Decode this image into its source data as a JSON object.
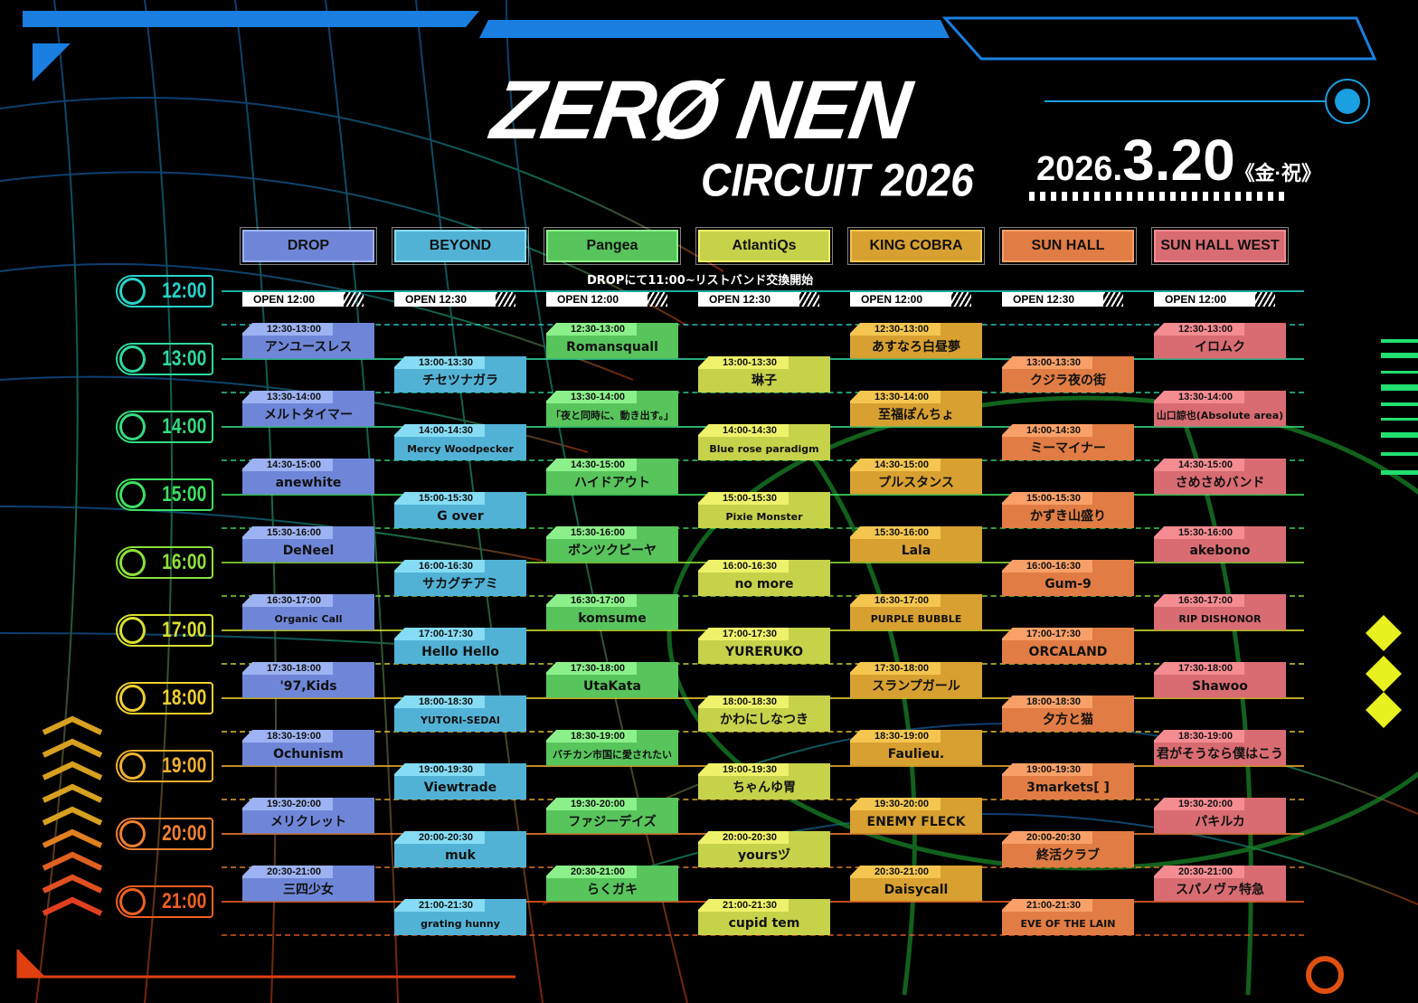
{
  "header": {
    "logo": "ZERØ NEN",
    "subtitle": "CIRCUIT 2026",
    "date_year": "2026.",
    "date_day": "3.20",
    "date_suffix": "《金·祝》"
  },
  "notice": "DROPにて11:00~リストバンド交換開始",
  "times": [
    "12:00",
    "13:00",
    "14:00",
    "15:00",
    "16:00",
    "17:00",
    "18:00",
    "19:00",
    "20:00",
    "21:00"
  ],
  "time_colors": [
    "#27d3c8",
    "#2fd8a0",
    "#35dc80",
    "#3ee060",
    "#8ee03a",
    "#d8e030",
    "#f0d030",
    "#f0b030",
    "#f08030",
    "#f06020"
  ],
  "stages": [
    {
      "name": "DROP",
      "color": "#6f86d8",
      "tab": "#9db2f2",
      "open": "OPEN 12:00",
      "sets": [
        {
          "time": "12:30-13:00",
          "artist": "アンユースレス"
        },
        {
          "time": "13:30-14:00",
          "artist": "メルトタイマー"
        },
        {
          "time": "14:30-15:00",
          "artist": "anewhite"
        },
        {
          "time": "15:30-16:00",
          "artist": "DeNeel"
        },
        {
          "time": "16:30-17:00",
          "artist": "Organic Call"
        },
        {
          "time": "17:30-18:00",
          "artist": "'97,Kids"
        },
        {
          "time": "18:30-19:00",
          "artist": "Ochunism"
        },
        {
          "time": "19:30-20:00",
          "artist": "メリクレット"
        },
        {
          "time": "20:30-21:00",
          "artist": "三四少女"
        }
      ]
    },
    {
      "name": "BEYOND",
      "color": "#52b2d6",
      "tab": "#86dcf4",
      "open": "OPEN 12:30",
      "sets": [
        {
          "time": "13:00-13:30",
          "artist": "チセツナガラ"
        },
        {
          "time": "14:00-14:30",
          "artist": "Mercy Woodpecker"
        },
        {
          "time": "15:00-15:30",
          "artist": "G over"
        },
        {
          "time": "16:00-16:30",
          "artist": "サカグチアミ"
        },
        {
          "time": "17:00-17:30",
          "artist": "Hello Hello"
        },
        {
          "time": "18:00-18:30",
          "artist": "YUTORI-SEDAI"
        },
        {
          "time": "19:00-19:30",
          "artist": "Viewtrade"
        },
        {
          "time": "20:00-20:30",
          "artist": "muk"
        },
        {
          "time": "21:00-21:30",
          "artist": "grating hunny"
        }
      ]
    },
    {
      "name": "Pangea",
      "color": "#58c45c",
      "tab": "#8cf08a",
      "open": "OPEN 12:00",
      "sets": [
        {
          "time": "12:30-13:00",
          "artist": "Romansquall"
        },
        {
          "time": "13:30-14:00",
          "artist": "「夜と同時に、動き出す。」"
        },
        {
          "time": "14:30-15:00",
          "artist": "ハイドアウト"
        },
        {
          "time": "15:30-16:00",
          "artist": "ボンツクピーヤ"
        },
        {
          "time": "16:30-17:00",
          "artist": "komsume"
        },
        {
          "time": "17:30-18:00",
          "artist": "UtaKata"
        },
        {
          "time": "18:30-19:00",
          "artist": "バチカン市国に愛されたい"
        },
        {
          "time": "19:30-20:00",
          "artist": "ファジーデイズ"
        },
        {
          "time": "20:30-21:00",
          "artist": "らくガキ"
        }
      ]
    },
    {
      "name": "AtlantiQs",
      "color": "#c6d24a",
      "tab": "#eef26a",
      "open": "OPEN 12:30",
      "sets": [
        {
          "time": "13:00-13:30",
          "artist": "琳子"
        },
        {
          "time": "14:00-14:30",
          "artist": "Blue rose paradigm"
        },
        {
          "time": "15:00-15:30",
          "artist": "Pixie Monster"
        },
        {
          "time": "16:00-16:30",
          "artist": "no more"
        },
        {
          "time": "17:00-17:30",
          "artist": "YURERUKO"
        },
        {
          "time": "18:00-18:30",
          "artist": "かわにしなつき"
        },
        {
          "time": "19:00-19:30",
          "artist": "ちゃんゆ胃"
        },
        {
          "time": "20:00-20:30",
          "artist": "yoursヅ"
        },
        {
          "time": "21:00-21:30",
          "artist": "cupid tem"
        }
      ]
    },
    {
      "name": "KING COBRA",
      "color": "#d8a030",
      "tab": "#f4c650",
      "open": "OPEN 12:00",
      "sets": [
        {
          "time": "12:30-13:00",
          "artist": "あすなろ白昼夢"
        },
        {
          "time": "13:30-14:00",
          "artist": "至福ぽんちょ"
        },
        {
          "time": "14:30-15:00",
          "artist": "プルスタンス"
        },
        {
          "time": "15:30-16:00",
          "artist": "Lala"
        },
        {
          "time": "16:30-17:00",
          "artist": "PURPLE BUBBLE"
        },
        {
          "time": "17:30-18:00",
          "artist": "スランプガール"
        },
        {
          "time": "18:30-19:00",
          "artist": "Faulieu."
        },
        {
          "time": "19:30-20:00",
          "artist": "ENEMY FLECK"
        },
        {
          "time": "20:30-21:00",
          "artist": "Daisycall"
        }
      ]
    },
    {
      "name": "SUN HALL",
      "color": "#e07c44",
      "tab": "#f8a068",
      "open": "OPEN 12:30",
      "sets": [
        {
          "time": "13:00-13:30",
          "artist": "クジラ夜の街"
        },
        {
          "time": "14:00-14:30",
          "artist": "ミーマイナー"
        },
        {
          "time": "15:00-15:30",
          "artist": "かずき山盛り"
        },
        {
          "time": "16:00-16:30",
          "artist": "Gum-9"
        },
        {
          "time": "17:00-17:30",
          "artist": "ORCALAND"
        },
        {
          "time": "18:00-18:30",
          "artist": "夕方と猫"
        },
        {
          "time": "19:00-19:30",
          "artist": "3markets[ ]"
        },
        {
          "time": "20:00-20:30",
          "artist": "終活クラブ"
        },
        {
          "time": "21:00-21:30",
          "artist": "EVE OF THE LAIN"
        }
      ]
    },
    {
      "name": "SUN HALL WEST",
      "color": "#d86c72",
      "tab": "#f48c92",
      "open": "OPEN 12:00",
      "sets": [
        {
          "time": "12:30-13:00",
          "artist": "イロムク"
        },
        {
          "time": "13:30-14:00",
          "artist": "山口諒也(Absolute area)"
        },
        {
          "time": "14:30-15:00",
          "artist": "さめさめバンド"
        },
        {
          "time": "15:30-16:00",
          "artist": "akebono"
        },
        {
          "time": "16:30-17:00",
          "artist": "RIP DISHONOR"
        },
        {
          "time": "17:30-18:00",
          "artist": "Shawoo"
        },
        {
          "time": "18:30-19:00",
          "artist": "君がそうなら僕はこう"
        },
        {
          "time": "19:30-20:00",
          "artist": "パキルカ"
        },
        {
          "time": "20:30-21:00",
          "artist": "スパノヴァ特急"
        }
      ]
    }
  ]
}
